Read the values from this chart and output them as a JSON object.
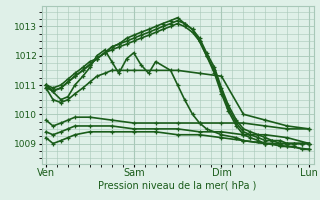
{
  "bg_color": "#dff0e8",
  "plot_bg_color": "#dff0e8",
  "grid_color": "#a8c8b8",
  "line_color": "#1a5c1a",
  "marker_color": "#1a5c1a",
  "xlabel": "Pression niveau de la mer( hPa )",
  "xlabel_color": "#1a5c1a",
  "ylabel_color": "#1a5c1a",
  "tick_color": "#1a5c1a",
  "ylim": [
    1008.3,
    1013.7
  ],
  "yticks": [
    1009,
    1010,
    1011,
    1012,
    1013
  ],
  "xtick_labels": [
    "Ven",
    "Sam",
    "Dim",
    "Lun"
  ],
  "xtick_positions": [
    0,
    1,
    2,
    3
  ],
  "series": [
    {
      "x": [
        0.0,
        0.08,
        0.17,
        0.25,
        0.33,
        0.42,
        0.5,
        0.58,
        0.67,
        0.75,
        0.83,
        0.92,
        1.0,
        1.08,
        1.17,
        1.25,
        1.33,
        1.42,
        1.5,
        1.58,
        1.67,
        1.75,
        1.83,
        1.92,
        2.0,
        2.08,
        2.17,
        2.25,
        2.33,
        2.42,
        2.5,
        2.58,
        2.67,
        2.75,
        2.83,
        2.92,
        3.0
      ],
      "y": [
        1011.0,
        1010.8,
        1010.9,
        1011.1,
        1011.3,
        1011.5,
        1011.7,
        1011.9,
        1012.1,
        1012.2,
        1012.3,
        1012.4,
        1012.5,
        1012.6,
        1012.7,
        1012.8,
        1012.9,
        1013.0,
        1013.1,
        1013.0,
        1012.8,
        1012.5,
        1012.0,
        1011.5,
        1010.8,
        1010.2,
        1009.7,
        1009.4,
        1009.3,
        1009.2,
        1009.1,
        1009.1,
        1009.0,
        1009.0,
        1009.0,
        1009.0,
        1009.0
      ],
      "lw": 1.2
    },
    {
      "x": [
        0.0,
        0.08,
        0.17,
        0.25,
        0.33,
        0.42,
        0.5,
        0.58,
        0.67,
        0.75,
        0.83,
        0.92,
        1.0,
        1.08,
        1.17,
        1.25,
        1.33,
        1.42,
        1.5,
        1.58,
        1.67,
        1.75,
        1.83,
        1.92,
        2.0,
        2.08,
        2.17,
        2.25,
        2.33,
        2.42,
        2.5,
        2.58,
        2.67,
        2.75,
        2.83,
        2.92,
        3.0
      ],
      "y": [
        1011.0,
        1010.9,
        1011.0,
        1011.2,
        1011.4,
        1011.6,
        1011.8,
        1011.9,
        1012.1,
        1012.3,
        1012.4,
        1012.5,
        1012.6,
        1012.7,
        1012.8,
        1012.9,
        1013.0,
        1013.1,
        1013.2,
        1013.1,
        1012.9,
        1012.6,
        1012.1,
        1011.6,
        1010.9,
        1010.3,
        1009.8,
        1009.5,
        1009.4,
        1009.3,
        1009.2,
        1009.1,
        1009.1,
        1009.0,
        1009.0,
        1009.0,
        1009.0
      ],
      "lw": 1.2
    },
    {
      "x": [
        0.0,
        0.08,
        0.17,
        0.25,
        0.33,
        0.42,
        0.5,
        0.58,
        0.67,
        0.75,
        0.83,
        0.92,
        1.0,
        1.08,
        1.17,
        1.25,
        1.33,
        1.42,
        1.5,
        1.58,
        1.67,
        1.75,
        1.83,
        1.92,
        2.0,
        2.08,
        2.17,
        2.25,
        2.33,
        2.42,
        2.5,
        2.58,
        2.67,
        2.75,
        2.83,
        2.92,
        3.0
      ],
      "y": [
        1010.9,
        1010.8,
        1010.9,
        1011.1,
        1011.3,
        1011.5,
        1011.7,
        1011.9,
        1012.1,
        1012.3,
        1012.4,
        1012.6,
        1012.7,
        1012.8,
        1012.9,
        1013.0,
        1013.1,
        1013.2,
        1013.3,
        1013.1,
        1012.9,
        1012.5,
        1012.0,
        1011.4,
        1010.7,
        1010.1,
        1009.6,
        1009.3,
        1009.2,
        1009.1,
        1009.0,
        1009.0,
        1008.9,
        1008.9,
        1008.9,
        1008.8,
        1008.8
      ],
      "lw": 1.2
    },
    {
      "x": [
        0.0,
        0.17,
        0.25,
        0.33,
        0.42,
        0.5,
        0.58,
        0.67,
        0.75,
        0.83,
        0.92,
        1.0,
        1.08,
        1.17,
        1.25,
        1.42,
        1.5,
        1.58,
        1.67,
        1.75,
        1.83,
        2.0,
        2.17,
        2.25,
        2.5,
        2.67,
        2.75,
        2.83,
        2.92,
        3.0
      ],
      "y": [
        1011.0,
        1010.5,
        1010.6,
        1011.0,
        1011.3,
        1011.6,
        1012.0,
        1012.2,
        1011.8,
        1011.4,
        1011.9,
        1012.1,
        1011.7,
        1011.4,
        1011.8,
        1011.5,
        1011.0,
        1010.5,
        1010.0,
        1009.7,
        1009.5,
        1009.3,
        1009.2,
        1009.1,
        1009.0,
        1009.0,
        1009.0,
        1009.0,
        1009.0,
        1009.0
      ],
      "lw": 1.2
    },
    {
      "x": [
        0.0,
        0.08,
        0.17,
        0.25,
        0.33,
        0.42,
        0.5,
        0.58,
        0.67,
        0.75,
        0.83,
        0.92,
        1.0,
        1.25,
        1.5,
        1.75,
        2.0,
        2.25,
        2.5,
        2.75,
        3.0
      ],
      "y": [
        1010.9,
        1010.5,
        1010.4,
        1010.5,
        1010.7,
        1010.9,
        1011.1,
        1011.3,
        1011.4,
        1011.5,
        1011.5,
        1011.5,
        1011.5,
        1011.5,
        1011.5,
        1011.4,
        1011.3,
        1010.0,
        1009.8,
        1009.6,
        1009.5
      ],
      "lw": 1.2
    },
    {
      "x": [
        0.0,
        0.08,
        0.17,
        0.25,
        0.33,
        0.5,
        0.75,
        1.0,
        1.25,
        1.5,
        1.75,
        2.0,
        2.25,
        2.5,
        2.75,
        3.0
      ],
      "y": [
        1009.8,
        1009.6,
        1009.7,
        1009.8,
        1009.9,
        1009.9,
        1009.8,
        1009.7,
        1009.7,
        1009.7,
        1009.7,
        1009.7,
        1009.7,
        1009.6,
        1009.5,
        1009.5
      ],
      "lw": 1.2
    },
    {
      "x": [
        0.0,
        0.08,
        0.17,
        0.25,
        0.33,
        0.5,
        0.75,
        1.0,
        1.25,
        1.5,
        1.75,
        2.0,
        2.25,
        2.5,
        2.75,
        3.0
      ],
      "y": [
        1009.4,
        1009.3,
        1009.4,
        1009.5,
        1009.6,
        1009.6,
        1009.6,
        1009.5,
        1009.5,
        1009.5,
        1009.4,
        1009.4,
        1009.3,
        1009.3,
        1009.2,
        1009.0
      ],
      "lw": 1.2
    },
    {
      "x": [
        0.0,
        0.08,
        0.17,
        0.25,
        0.33,
        0.5,
        0.75,
        1.0,
        1.25,
        1.5,
        1.75,
        2.0,
        2.25,
        2.5,
        2.75,
        3.0
      ],
      "y": [
        1009.2,
        1009.0,
        1009.1,
        1009.2,
        1009.3,
        1009.4,
        1009.4,
        1009.4,
        1009.4,
        1009.3,
        1009.3,
        1009.2,
        1009.1,
        1009.0,
        1008.9,
        1008.8
      ],
      "lw": 1.2
    }
  ]
}
